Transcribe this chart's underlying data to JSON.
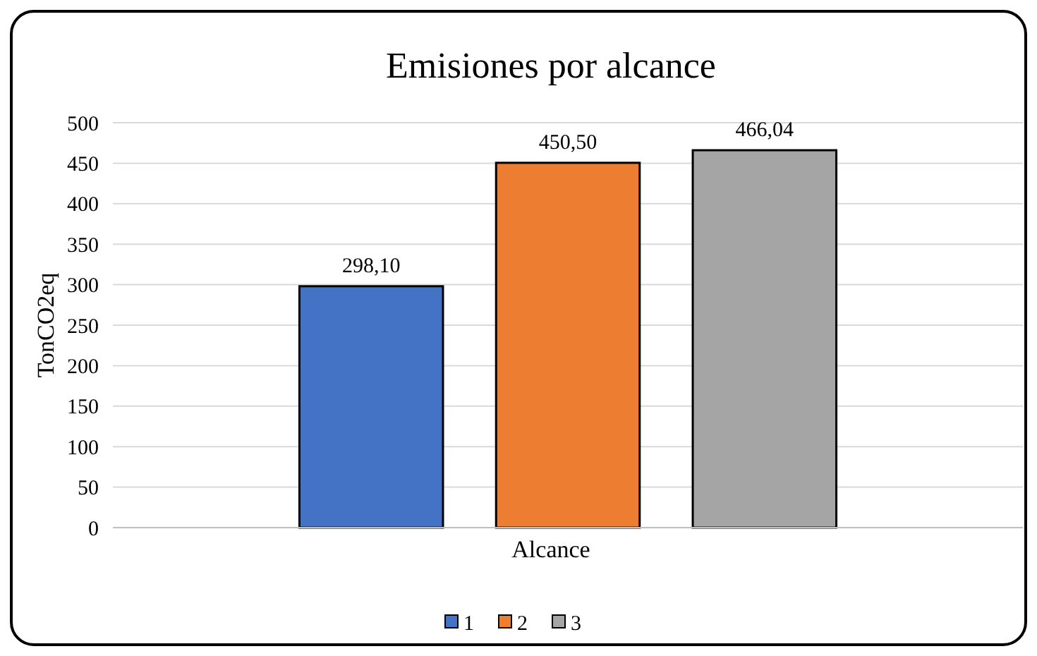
{
  "chart_data": {
    "type": "bar",
    "title": "Emisiones por alcance",
    "xlabel": "Alcance",
    "ylabel": "TonCO2eq",
    "categories": [
      null
    ],
    "series": [
      {
        "name": "1",
        "color": "#4472c4",
        "values": [
          298.1
        ],
        "value_labels": [
          "298,10"
        ]
      },
      {
        "name": "2",
        "color": "#ed7d31",
        "values": [
          450.5
        ],
        "value_labels": [
          "450,50"
        ]
      },
      {
        "name": "3",
        "color": "#a5a5a5",
        "values": [
          466.04
        ],
        "value_labels": [
          "466,04"
        ]
      }
    ],
    "ylim": [
      0,
      500
    ],
    "yticks": [
      0,
      50,
      100,
      150,
      200,
      250,
      300,
      350,
      400,
      450,
      500
    ],
    "grid": "y",
    "legend": "bottom"
  }
}
